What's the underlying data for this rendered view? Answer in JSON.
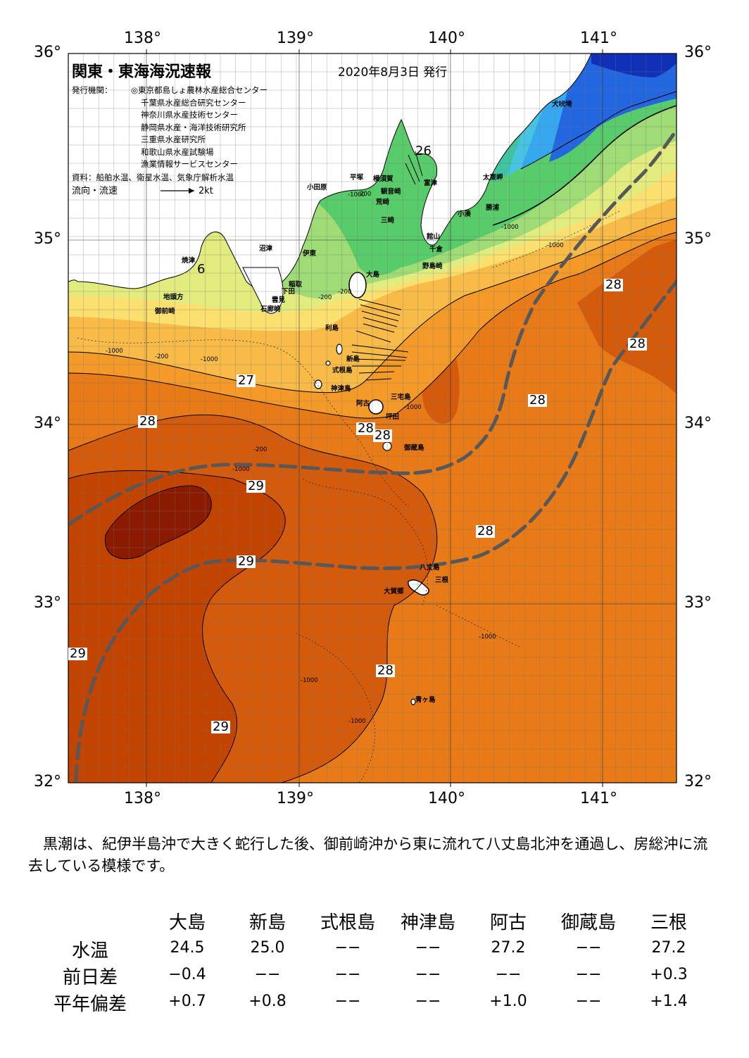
{
  "map": {
    "title": "関東・東海海況速報",
    "issue_date": "2020年8月3日 発行",
    "issuer_label": "発行機関：",
    "issuers": [
      "◎東京都島しょ農林水産総合センター",
      "千葉県水産総合研究センター",
      "神奈川県水産技術センター",
      "静岡県水産・海洋技術研究所",
      "三重県水産研究所",
      "和歌山県水産試験場",
      "漁業情報サービスセンター"
    ],
    "source": "資料：船舶水温、衛星水温、気象庁解析水温",
    "current_legend": "流向・流速",
    "current_scale": "2kt",
    "lon_labels_top": [
      "138°",
      "139°",
      "140°",
      "141°"
    ],
    "lon_labels_bottom": [
      "138°",
      "139°",
      "140°",
      "141°"
    ],
    "lat_labels_left": [
      "36°",
      "35°",
      "34°",
      "33°",
      "32°"
    ],
    "lat_labels_right": [
      "36°",
      "35°",
      "34°",
      "33°",
      "32°"
    ],
    "place_names": [
      "犬吠埼",
      "太東岬",
      "勝浦",
      "小湊",
      "富津",
      "横須賀",
      "観音崎",
      "平塚",
      "荒崎",
      "三崎",
      "館山",
      "千倉",
      "野島崎",
      "小田原",
      "沼津",
      "伊東",
      "大島",
      "稲取",
      "下田",
      "雲見",
      "石廊崎",
      "焼津",
      "地頭方",
      "御前崎",
      "利島",
      "新島",
      "式根島",
      "神津島",
      "三宅島",
      "阿古",
      "坪田",
      "御蔵島",
      "八丈島",
      "三根",
      "大賀郷",
      "青ヶ島"
    ],
    "isotherm_labels": [
      "26",
      "6",
      "27",
      "28",
      "28",
      "28",
      "28",
      "28",
      "28",
      "28",
      "29",
      "29",
      "29",
      "28",
      "29"
    ],
    "depth_labels": [
      "-1000",
      "-200",
      "-1000",
      "-200",
      "-1000",
      "-200",
      "-1000",
      "-200",
      "-1000",
      "-1000",
      "-200",
      "-1000",
      "-1000",
      "-1000",
      "-1000"
    ],
    "colors": {
      "t29_plus": "#8a1a00",
      "t29": "#c24400",
      "t28_5": "#d45a0c",
      "t28": "#e97a18",
      "t27_5": "#f39a28",
      "t27": "#f8bb48",
      "t26": "#fbe070",
      "t25": "#e2ec7e",
      "t24": "#9fdc76",
      "t23": "#58cc6a",
      "t22": "#3ec4a0",
      "t21": "#48c4e2",
      "t20": "#36a8f0",
      "t19": "#2266e0",
      "t18": "#1030b8",
      "land": "#ffffff",
      "kuroshio_path": "#585858"
    }
  },
  "summary": "黒潮は、紀伊半島沖で大きく蛇行した後、御前崎沖から東に流れて八丈島北沖を通過し、房総沖に流去している模様です。",
  "table": {
    "columns": [
      "大島",
      "新島",
      "式根島",
      "神津島",
      "阿古",
      "御蔵島",
      "三根"
    ],
    "rows": [
      {
        "label": "水温",
        "values": [
          "24.5",
          "25.0",
          "−−",
          "−−",
          "27.2",
          "−−",
          "27.2"
        ]
      },
      {
        "label": "前日差",
        "values": [
          "−0.4",
          "−−",
          "−−",
          "−−",
          "−−",
          "−−",
          "+0.3"
        ]
      },
      {
        "label": "平年偏差",
        "values": [
          "+0.7",
          "+0.8",
          "−−",
          "−−",
          "+1.0",
          "−−",
          "+1.4"
        ]
      }
    ]
  }
}
